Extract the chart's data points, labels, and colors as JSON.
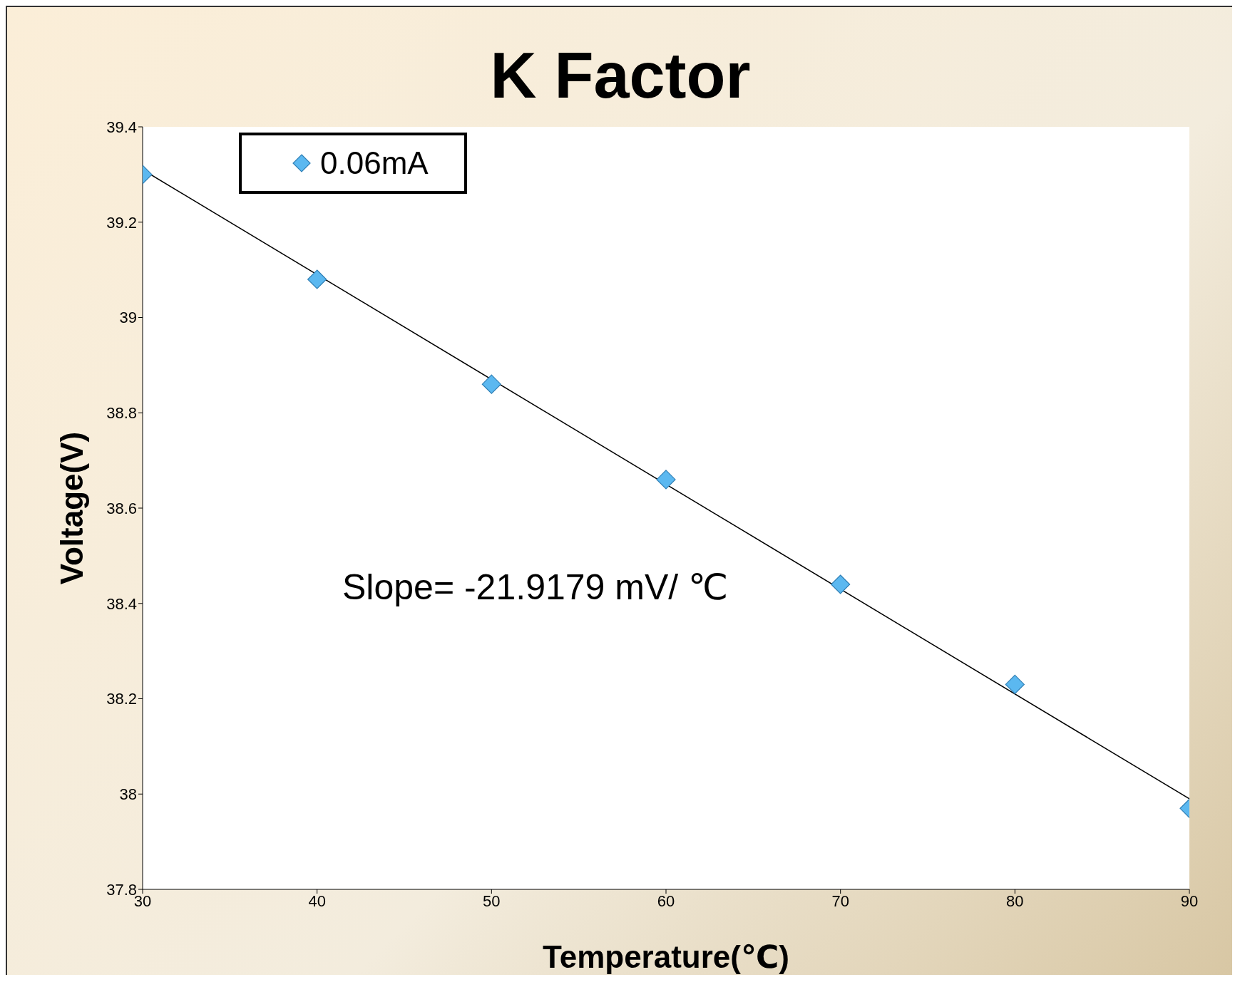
{
  "chart_data": {
    "type": "scatter",
    "title": "K Factor",
    "xlabel": "Temperature(℃)",
    "ylabel": "Voltage(V)",
    "annotations": [
      "Slope= -21.9179 mV/ ℃"
    ],
    "xlim": [
      30,
      90
    ],
    "xticks": [
      30,
      40,
      50,
      60,
      70,
      80,
      90
    ],
    "ylim": [
      37.8,
      39.4
    ],
    "yticks": [
      37.8,
      38,
      38.2,
      38.4,
      38.6,
      38.8,
      39,
      39.2,
      39.4
    ],
    "legend": "top left",
    "marker": "diamond",
    "series": [
      {
        "name": "0.06mA",
        "color": "#5bb8f0",
        "x": [
          30,
          40,
          50,
          60,
          70,
          80,
          90
        ],
        "values": [
          39.3,
          39.08,
          38.86,
          38.66,
          38.44,
          38.23,
          37.97
        ]
      },
      {
        "type": "line",
        "color": "#000000",
        "marker": "none",
        "line_style": "solid",
        "x": [
          30,
          90
        ],
        "values": [
          39.31,
          37.99
        ]
      }
    ]
  }
}
